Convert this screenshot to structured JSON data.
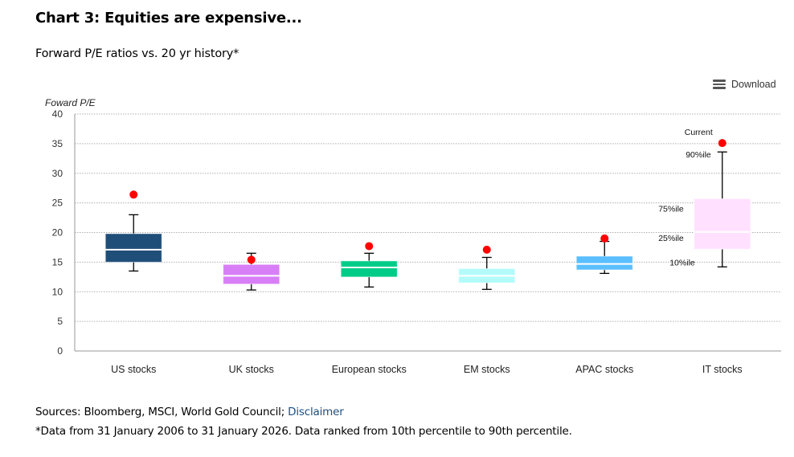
{
  "header": {
    "title": "Chart 3: Equities are expensive...",
    "subtitle": "Forward P/E ratios vs. 20 yr history*"
  },
  "toolbar": {
    "download_label": "Download",
    "download_icon": "hamburger-menu-icon"
  },
  "footer": {
    "sources_prefix": "Sources: Bloomberg, MSCI, World Gold Council; ",
    "disclaimer_link": "Disclaimer",
    "footnote": "*Data from 31 January 2006 to 31 January 2026. Data ranked from 10th percentile to 90th percentile."
  },
  "colors": {
    "current_marker": "#ff0000",
    "gridline": "#b0b0b0",
    "axis": "#999999"
  },
  "chart_data": {
    "type": "boxplot",
    "title": "Chart 3: Equities are expensive...",
    "subtitle": "Forward P/E ratios vs. 20 yr history*",
    "ylabel": "Foward P/E",
    "xlabel": "",
    "ylim": [
      0,
      40
    ],
    "yticks": [
      0,
      5,
      10,
      15,
      20,
      25,
      30,
      35,
      40
    ],
    "grid": true,
    "categories": [
      "US stocks",
      "UK stocks",
      "European stocks",
      "EM stocks",
      "APAC stocks",
      "IT stocks"
    ],
    "series": [
      {
        "name": "US stocks",
        "color": "#1f4e79",
        "p10": 13.5,
        "p25": 15.0,
        "median": 17.1,
        "p75": 19.8,
        "p90": 23.0,
        "current": 26.4
      },
      {
        "name": "UK stocks",
        "color": "#d87ef7",
        "p10": 10.3,
        "p25": 11.3,
        "median": 12.7,
        "p75": 14.6,
        "p90": 16.5,
        "current": 15.4
      },
      {
        "name": "European stocks",
        "color": "#00cc88",
        "p10": 10.8,
        "p25": 12.5,
        "median": 14.1,
        "p75": 15.2,
        "p90": 16.5,
        "current": 17.7
      },
      {
        "name": "EM stocks",
        "color": "#b3fbfb",
        "p10": 10.4,
        "p25": 11.5,
        "median": 12.7,
        "p75": 13.9,
        "p90": 15.8,
        "current": 17.1
      },
      {
        "name": "APAC stocks",
        "color": "#5bbfff",
        "p10": 13.1,
        "p25": 13.7,
        "median": 14.7,
        "p75": 16.0,
        "p90": 18.5,
        "current": 19.0
      },
      {
        "name": "IT stocks",
        "color": "#ffe0ff",
        "p10": 14.2,
        "p25": 17.2,
        "median": 20.1,
        "p75": 25.7,
        "p90": 33.6,
        "current": 35.1
      }
    ],
    "annotations": [
      {
        "text": "Current",
        "series": "IT stocks",
        "anchor": "current"
      },
      {
        "text": "90%ile",
        "series": "IT stocks",
        "anchor": "p90"
      },
      {
        "text": "75%ile",
        "series": "IT stocks",
        "anchor": "p75"
      },
      {
        "text": "25%ile",
        "series": "IT stocks",
        "anchor": "p25"
      },
      {
        "text": "10%ile",
        "series": "IT stocks",
        "anchor": "p10"
      }
    ],
    "legend": "none"
  }
}
